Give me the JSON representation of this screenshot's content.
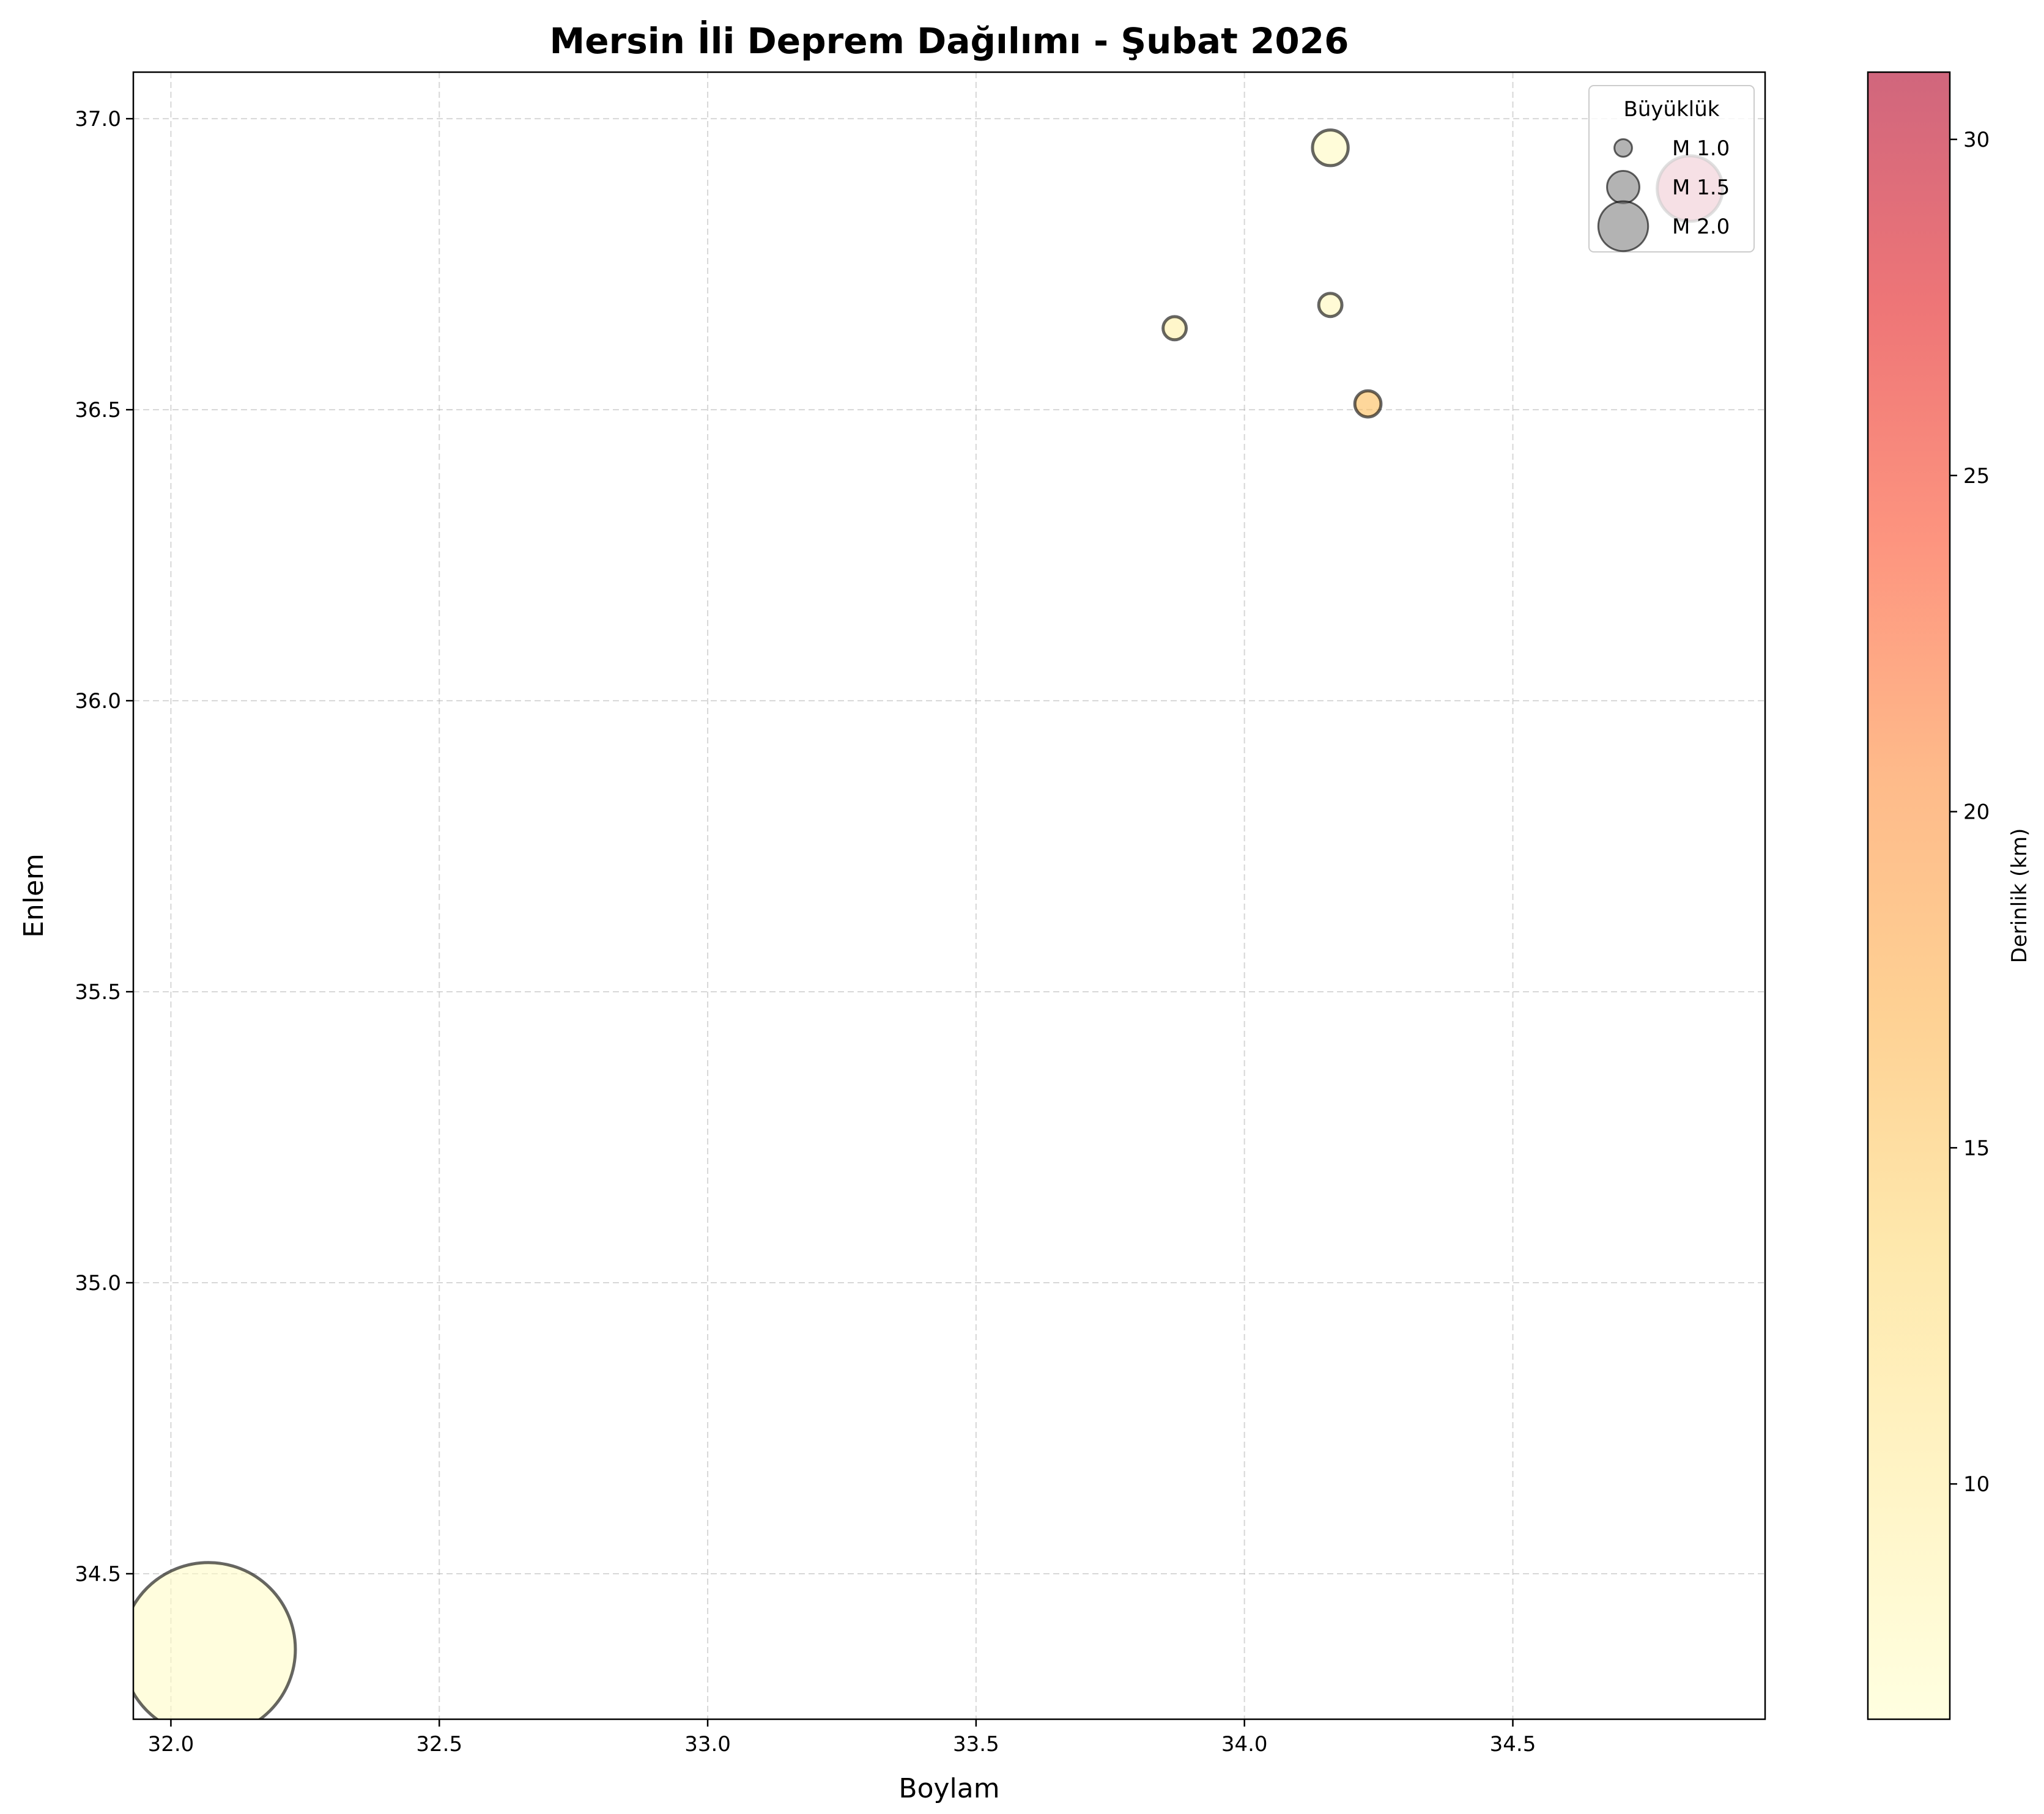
{
  "chart_data": {
    "type": "scatter",
    "title": "Mersin İli Deprem Dağılımı - Şubat 2026",
    "xlabel": "Boylam",
    "ylabel": "Enlem",
    "xlim": [
      31.93,
      34.97
    ],
    "ylim": [
      34.25,
      37.08
    ],
    "xticks": [
      32.0,
      32.5,
      33.0,
      33.5,
      34.0,
      34.5
    ],
    "yticks": [
      34.5,
      35.0,
      35.5,
      36.0,
      36.5,
      37.0
    ],
    "grid": true,
    "points": [
      {
        "lon": 32.07,
        "lat": 34.37,
        "magnitude": 4.6,
        "depth_km": 7
      },
      {
        "lon": 34.16,
        "lat": 36.95,
        "magnitude": 1.6,
        "depth_km": 7.5
      },
      {
        "lon": 34.83,
        "lat": 36.88,
        "magnitude": 2.4,
        "depth_km": 31
      },
      {
        "lon": 34.16,
        "lat": 36.68,
        "magnitude": 1.2,
        "depth_km": 8
      },
      {
        "lon": 33.87,
        "lat": 36.64,
        "magnitude": 1.2,
        "depth_km": 9.5
      },
      {
        "lon": 34.23,
        "lat": 36.51,
        "magnitude": 1.3,
        "depth_km": 16
      }
    ],
    "legend": {
      "title": "Büyüklük",
      "position": "top-right",
      "items": [
        {
          "label": "M 1.0",
          "magnitude": 1.0
        },
        {
          "label": "M 1.5",
          "magnitude": 1.5
        },
        {
          "label": "M 2.0",
          "magnitude": 2.0
        }
      ]
    },
    "colorbar": {
      "label": "Derinlik (km)",
      "min": 6.5,
      "max": 31,
      "ticks": [
        10,
        15,
        20,
        25,
        30
      ],
      "colormap": [
        "#ffffcc",
        "#ffeda0",
        "#fed976",
        "#feb24c",
        "#fd8d3c",
        "#fc4e2a",
        "#e31a1c",
        "#b10026"
      ]
    }
  }
}
